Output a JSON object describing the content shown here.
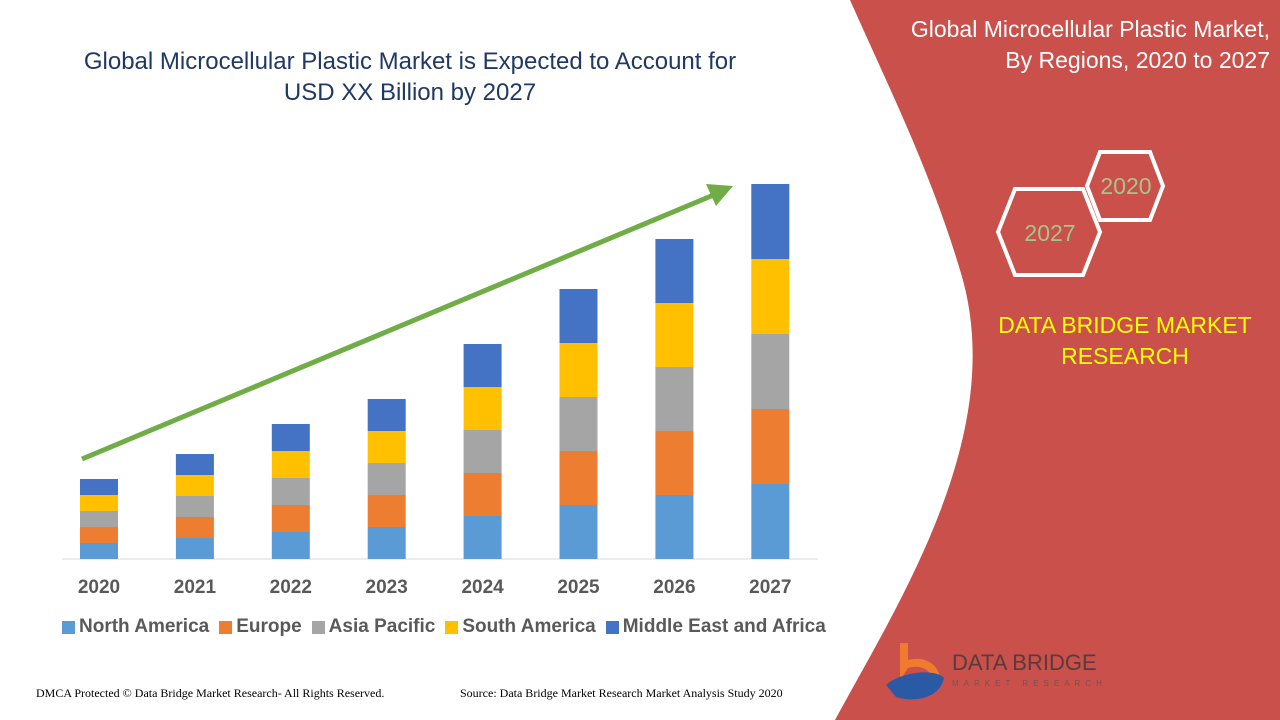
{
  "title": "Global Microcellular Plastic Market is Expected to Account for USD XX Billion by 2027",
  "side_panel": {
    "title_line1": "Global Microcellular Plastic Market,",
    "title_line2": "By Regions, 2020 to 2027",
    "hex_2020": "2020",
    "hex_2027": "2027",
    "brand_line1": "DATA BRIDGE MARKET",
    "brand_line2": "RESEARCH",
    "logo_text": "DATA BRIDGE",
    "logo_subtext": "MARKET RESEARCH",
    "panel_color": "#c9504b"
  },
  "footer": {
    "left": "DMCA Protected © Data Bridge Market Research- All Rights Reserved.",
    "right": "Source: Data Bridge Market Research Market Analysis Study 2020"
  },
  "chart_data": {
    "type": "bar",
    "stacked": true,
    "categories": [
      "2020",
      "2021",
      "2022",
      "2023",
      "2024",
      "2025",
      "2026",
      "2027"
    ],
    "series": [
      {
        "name": "North America",
        "color": "#5b9bd5",
        "values": [
          16,
          21,
          27,
          32,
          43,
          54,
          64,
          75
        ]
      },
      {
        "name": "Europe",
        "color": "#ed7d31",
        "values": [
          16,
          21,
          27,
          32,
          43,
          54,
          64,
          75
        ]
      },
      {
        "name": "Asia Pacific",
        "color": "#a5a5a5",
        "values": [
          16,
          21,
          27,
          32,
          43,
          54,
          64,
          75
        ]
      },
      {
        "name": "South America",
        "color": "#ffc000",
        "values": [
          16,
          21,
          27,
          32,
          43,
          54,
          64,
          75
        ]
      },
      {
        "name": "Middle East and Africa",
        "color": "#4472c4",
        "values": [
          16,
          21,
          27,
          32,
          43,
          54,
          64,
          75
        ]
      }
    ],
    "values_relative": true,
    "trend_arrow_color": "#70ad47",
    "legend": "bottom",
    "grid": false
  }
}
